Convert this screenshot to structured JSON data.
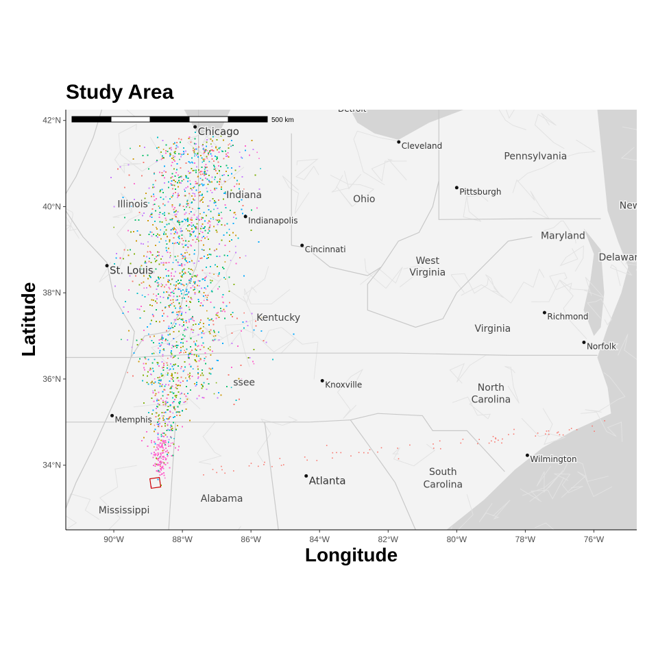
{
  "title": "Study Area",
  "xlabel": "Longitude",
  "ylabel": "Latitude",
  "scalebar": {
    "label": "500 km"
  },
  "x_ticks": [
    {
      "value": -90,
      "label": "90°W"
    },
    {
      "value": -88,
      "label": "88°W"
    },
    {
      "value": -86,
      "label": "86°W"
    },
    {
      "value": -84,
      "label": "84°W"
    },
    {
      "value": -82,
      "label": "82°W"
    },
    {
      "value": -80,
      "label": "80°W"
    },
    {
      "value": -78,
      "label": "78°W"
    },
    {
      "value": -76,
      "label": "76°W"
    }
  ],
  "y_ticks": [
    {
      "value": 34,
      "label": "34°N"
    },
    {
      "value": 36,
      "label": "36°N"
    },
    {
      "value": 38,
      "label": "38°N"
    },
    {
      "value": 40,
      "label": "40°N"
    },
    {
      "value": 42,
      "label": "42°N"
    }
  ],
  "extent": {
    "lon": [
      -91.4,
      -74.75
    ],
    "lat": [
      32.5,
      42.25
    ]
  },
  "states": [
    {
      "name": "Illinois",
      "lon": -89.45,
      "lat": 39.98
    },
    {
      "name": "Indiana",
      "lon": -86.2,
      "lat": 40.2
    },
    {
      "name": "Ohio",
      "lon": -82.7,
      "lat": 40.1
    },
    {
      "name": "Pennsylvania",
      "lon": -77.7,
      "lat": 41.1
    },
    {
      "name": "Maryland",
      "lon": -76.9,
      "lat": 39.25
    },
    {
      "name": "Delaware",
      "lon": -75.2,
      "lat": 38.75
    },
    {
      "name": "New",
      "lon": -74.95,
      "lat": 39.95
    },
    {
      "name": "West",
      "lon": -80.85,
      "lat": 38.67
    },
    {
      "name": "Virginia",
      "lon": -80.85,
      "lat": 38.4
    },
    {
      "name": "Kentucky",
      "lon": -85.2,
      "lat": 37.35
    },
    {
      "name": "Virginia",
      "lon": -78.95,
      "lat": 37.1
    },
    {
      "name": "North",
      "lon": -79.0,
      "lat": 35.73
    },
    {
      "name": "Carolina",
      "lon": -79.0,
      "lat": 35.45
    },
    {
      "name": "South",
      "lon": -80.4,
      "lat": 33.77
    },
    {
      "name": "Carolina",
      "lon": -80.4,
      "lat": 33.48
    },
    {
      "name": "Alabama",
      "lon": -86.85,
      "lat": 33.15
    },
    {
      "name": "Mississippi",
      "lon": -89.7,
      "lat": 32.88
    },
    {
      "name": "ssee",
      "lon": -86.2,
      "lat": 35.85
    }
  ],
  "cities": [
    {
      "name": "Chicago",
      "lon": -87.63,
      "lat": 41.85,
      "big": true
    },
    {
      "name": "Detroit",
      "lon": -83.05,
      "lat": 42.33,
      "big": false,
      "nodot": true
    },
    {
      "name": "Cleveland",
      "lon": -81.69,
      "lat": 41.5,
      "big": false
    },
    {
      "name": "Pittsburgh",
      "lon": -80.0,
      "lat": 40.44,
      "big": false
    },
    {
      "name": "Indianapolis",
      "lon": -86.16,
      "lat": 39.77,
      "big": false
    },
    {
      "name": "Cincinnati",
      "lon": -84.51,
      "lat": 39.1,
      "big": false
    },
    {
      "name": "St. Louis",
      "lon": -90.2,
      "lat": 38.63,
      "big": true
    },
    {
      "name": "Richmond",
      "lon": -77.44,
      "lat": 37.54,
      "big": false
    },
    {
      "name": "Norfolk",
      "lon": -76.29,
      "lat": 36.85,
      "big": false
    },
    {
      "name": "Knoxville",
      "lon": -83.92,
      "lat": 35.96,
      "big": false
    },
    {
      "name": "Memphis",
      "lon": -90.05,
      "lat": 35.15,
      "big": false
    },
    {
      "name": "Wilmington",
      "lon": -77.94,
      "lat": 34.23,
      "big": false
    },
    {
      "name": "Atlanta",
      "lon": -84.39,
      "lat": 33.75,
      "big": true
    }
  ],
  "study_site": {
    "lon": -88.79,
    "lat": 33.59
  },
  "colors": {
    "land": "#f3f3f3",
    "water": "#d5d5d5",
    "border": "#c8c8c8",
    "road": "#e2e2e2",
    "site": "#cc0000",
    "series": [
      "#f8766d",
      "#cd9600",
      "#7cae00",
      "#00be67",
      "#00bfc4",
      "#00a9ff",
      "#c77cff",
      "#ff61cc"
    ]
  },
  "chart_data": {
    "type": "scatter",
    "title": "Study Area",
    "xlabel": "Longitude",
    "ylabel": "Latitude",
    "xlim": [
      -91.4,
      -74.75
    ],
    "ylim": [
      32.5,
      42.25
    ],
    "grid": false,
    "legend": "none",
    "point_cloud": {
      "description_values": "dense trajectory points radiating north-northeast from study site",
      "origin": [
        -88.79,
        33.59
      ],
      "north_extent_lat": 41.45,
      "east_extent_lon": -83.2,
      "west_extent_lon": -90.1,
      "series_count": 8
    }
  }
}
